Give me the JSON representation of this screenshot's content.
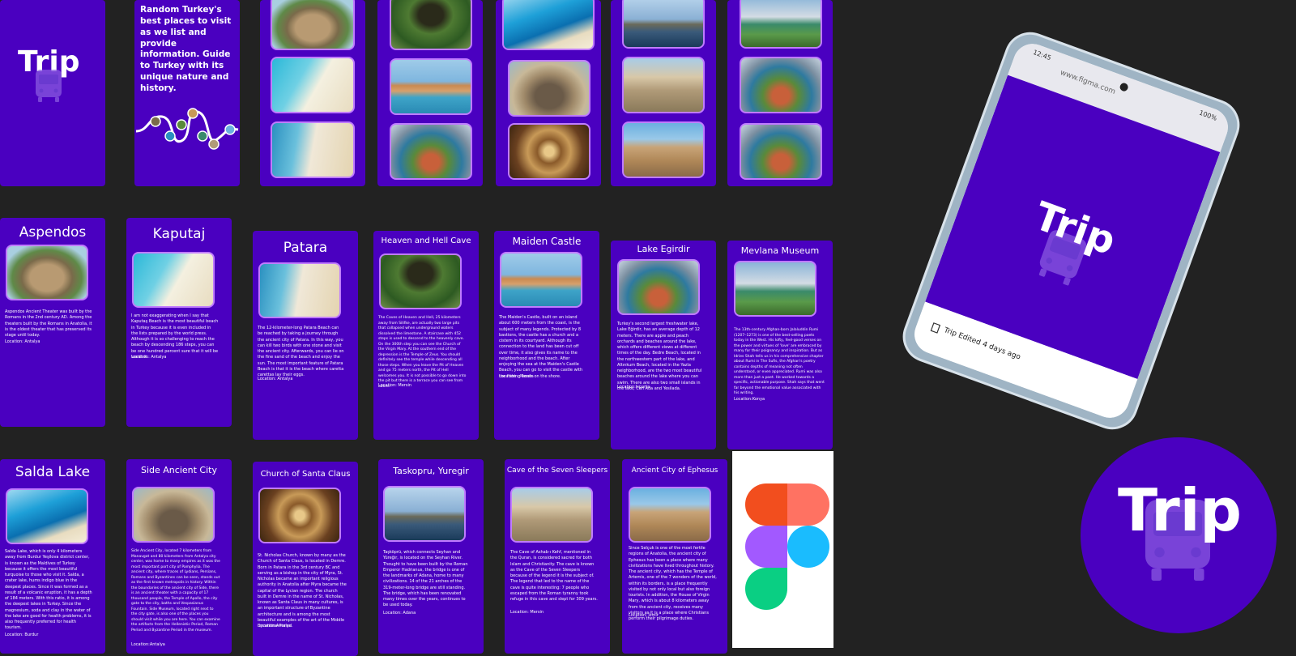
{
  "intro": {
    "logo": "Trip",
    "tagline": "Random Turkey's best places to visit as we list and provide information. Guide to Turkey with its unique nature and history."
  },
  "gallery": {
    "columns": [
      {
        "photos": [
          "amph",
          "beach",
          "dunes"
        ]
      },
      {
        "photos": [
          "cave",
          "castle",
          "island"
        ]
      },
      {
        "photos": [
          "sea",
          "stadium",
          "dome"
        ]
      },
      {
        "photos": [
          "bridge",
          "ruins",
          "library"
        ]
      },
      {
        "photos": [
          "mosque",
          "island",
          "island"
        ]
      }
    ]
  },
  "places": [
    {
      "title": "Aspendos",
      "photo": "amph",
      "description": "Aspendos Ancient Theater was built by the Romans in the 2nd century AD. Among the theaters built by the Romans in Anatolia, it is the oldest theater that has preserved its stage until today.",
      "location": "Location: Antalya"
    },
    {
      "title": "Kaputaj",
      "photo": "beach",
      "description": "I am not exaggerating when I say that Kaputaş Beach is the most beautiful beach in Turkey because it is even included in the lists prepared by the world press. Although it is so challenging to reach the beach by descending 186 steps, you can be one hundred percent sure that it will be worth it.",
      "location": "Location: Antalya"
    },
    {
      "title": "Patara",
      "photo": "dunes",
      "description": "The 12-kilometer-long Patara Beach can be reached by taking a journey through the ancient city of Patara. In this way, you can kill two birds with one stone and visit the ancient city. Afterwards, you can lie on the fine sand of the beach and enjoy the sun. The most important feature of Patara Beach is that it is the beach where caretta carettas lay their eggs.",
      "location": "Location: Antalya"
    },
    {
      "title": "Heaven and Hell Cave",
      "photo": "cave",
      "description": "The Caves of Heaven and Hell, 25 kilometers away from Silifke, are actually two large pits that collapsed when underground waters dissolved the limestone. A staircase with 452 steps is used to descend to the heavenly cave. On the 300th step you can see the Church of the Virgin Mary. At the southern end of the depression is the Temple of Zeus. You should definitely see the temple while descending all those steps. When you leave the Pit of Heaven and go 75 meters north, the Pit of Hell welcomes you. It is not possible to go down into the pit but there is a terrace you can see from above.",
      "location": "Location: Mersin"
    },
    {
      "title": "Maiden Castle",
      "photo": "castle",
      "description": "The Maiden's Castle, built on an island about 600 meters from the coast, is the subject of many legends. Protected by 8 bastions, the castle has a church and a cistern in its courtyard. Although its connection to the land has been cut off over time, it also gives its name to the neighborhood and the beach. After enjoying the sea at the Maiden's Castle Beach, you can go to visit the castle with the fishing boats on the shore.",
      "location": "Location : Mersin"
    },
    {
      "title": "Lake Egirdir",
      "photo": "island",
      "description": "Turkey's second largest freshwater lake, Lake Eğirdir, has an average depth of 12 meters. There are apple and peach orchards and beaches around the lake, which offers different views at different times of the day. Bedre Beach, located in the northwestern part of the lake, and Altınkum Beach, located in the Yazla neighborhood, are the two most beautiful beaches around the lake where you can swim. There are also two small islands in the lake, Can Ada and Yesilada.",
      "location": "Location:Isparta"
    },
    {
      "title": "Mevlana Museum",
      "photo": "mosque",
      "description": "The 13th-century Afghan-born Jalaluddin Rumi (1207–1273) is one of the best-selling poets today in the West. His lofty, feel-good verses on the power and virtues of 'love' are embraced by many for their poignancy and inspiration. But as Idries Shah tells us in his comprehensive chapter about Rumi in The Sufis, the Afghan's poetry contains depths of meaning not often understood, or even appreciated. Rumi was also more than just a poet. He worked towards a specific, actionable purpose. Shah says that went far beyond the emotional value associated with his writing.",
      "location": "Location:Konya"
    },
    {
      "title": "Salda Lake",
      "photo": "sea",
      "description": "Salda Lake, which is only 4 kilometers away from Burdur Yeşilova district center, is known as the Maldives of Turkey because it offers the most beautiful turquoise to those who visit it. Salda, a crater lake, hums indigo blue in the deepest places. Since it was formed as a result of a volcanic eruption, it has a depth of 184 meters. With this ratio, it is among the deepest lakes in Turkey. Since the magnesium, soda and clay in the water of the lake are good for health problems, it is also frequently preferred for health tourism.",
      "location": "Location: Burdur"
    },
    {
      "title": "Side Ancient City",
      "photo": "stadium",
      "description": "Side Ancient City, located 7 kilometers from Manavgat and 80 kilometers from Antalya city center, was home to many empires as it was the most important port city of Pamphylia. The ancient city, where traces of Lydians, Persians, Romans and Byzantines can be seen, stands out as the first known metropolis in history. Within the boundaries of the ancient city of Side, there is an ancient theater with a capacity of 17 thousand people, the Temple of Apollo, the city gate to the city, baths and Vespasianus Fountain. Side Museum, located right next to the city gate, is also one of the places you should visit while you are here. You can examine the artifacts from the Hellenistic Period, Roman Period and Byzantine Period in the museum.",
      "location": "Location:Antalya"
    },
    {
      "title": "Church of Santa Claus",
      "photo": "dome",
      "description": "St. Nicholas Church, known by many as the Church of Santa Claus, is located in Demre. Born in Patara in the 3rd century BC and serving as a bishop in the city of Myra, St. Nicholas became an important religious authority in Anatolia after Myra became the capital of the Lycian region. The church built in Demre in the name of St. Nicholas, known as Santa Claus in many cultures, is an important structure of Byzantine architecture and is among the most beautiful examples of the art of the Middle Byzantine Period.",
      "location": "Location:Antalya"
    },
    {
      "title": "Taskopru, Yuregir",
      "photo": "bridge",
      "description": "Taşköprü, which connects Seyhan and Yüreğir, is located on the Seyhan River. Thought to have been built by the Roman Emperor Hadrianus, the bridge is one of the landmarks of Adana, home to many civilizations. 14 of the 21 arches of the 319-meter-long bridge are still standing. The bridge, which has been renovated many times over the years, continues to be used today.",
      "location": "Location: Adana"
    },
    {
      "title": "Cave of the Seven Sleepers",
      "photo": "ruins",
      "description": "The Cave of Ashab-ı Kehf, mentioned in the Quran, is considered sacred for both Islam and Christianity. The cave is known as the Cave of the Seven Sleepers because of the legend it is the subject of. The legend that led to the name of the cave is quite interesting: 7 people who escaped from the Roman tyranny took refuge in this cave and slept for 309 years.",
      "location": "Location: Mersin"
    },
    {
      "title": "Ancient City of Ephesus",
      "photo": "library",
      "description": "Since Selçuk is one of the most fertile regions of Anatolia, the ancient city of Ephesus has been a place where many civilizations have lived throughout history. The ancient city, which has the Temple of Artemis, one of the 7 wonders of the world, within its borders, is a place frequently visited by not only local but also foreign tourists. In addition, the House of Virgin Mary, which is about 8 kilometers away from the ancient city, receives many visitors as it is a place where Christians perform their pilgrimage duties.",
      "location": "Location: İzmir"
    }
  ],
  "phone": {
    "time": "12:45",
    "url": "www.figma.com",
    "battery": "100%",
    "logo": "Trip",
    "footer": "Trip  Edited 4 days ago"
  },
  "app_icon": {
    "logo": "Trip"
  },
  "colors": {
    "brand": "#4a00c0",
    "accent": "#c07cff",
    "background": "#222222"
  }
}
